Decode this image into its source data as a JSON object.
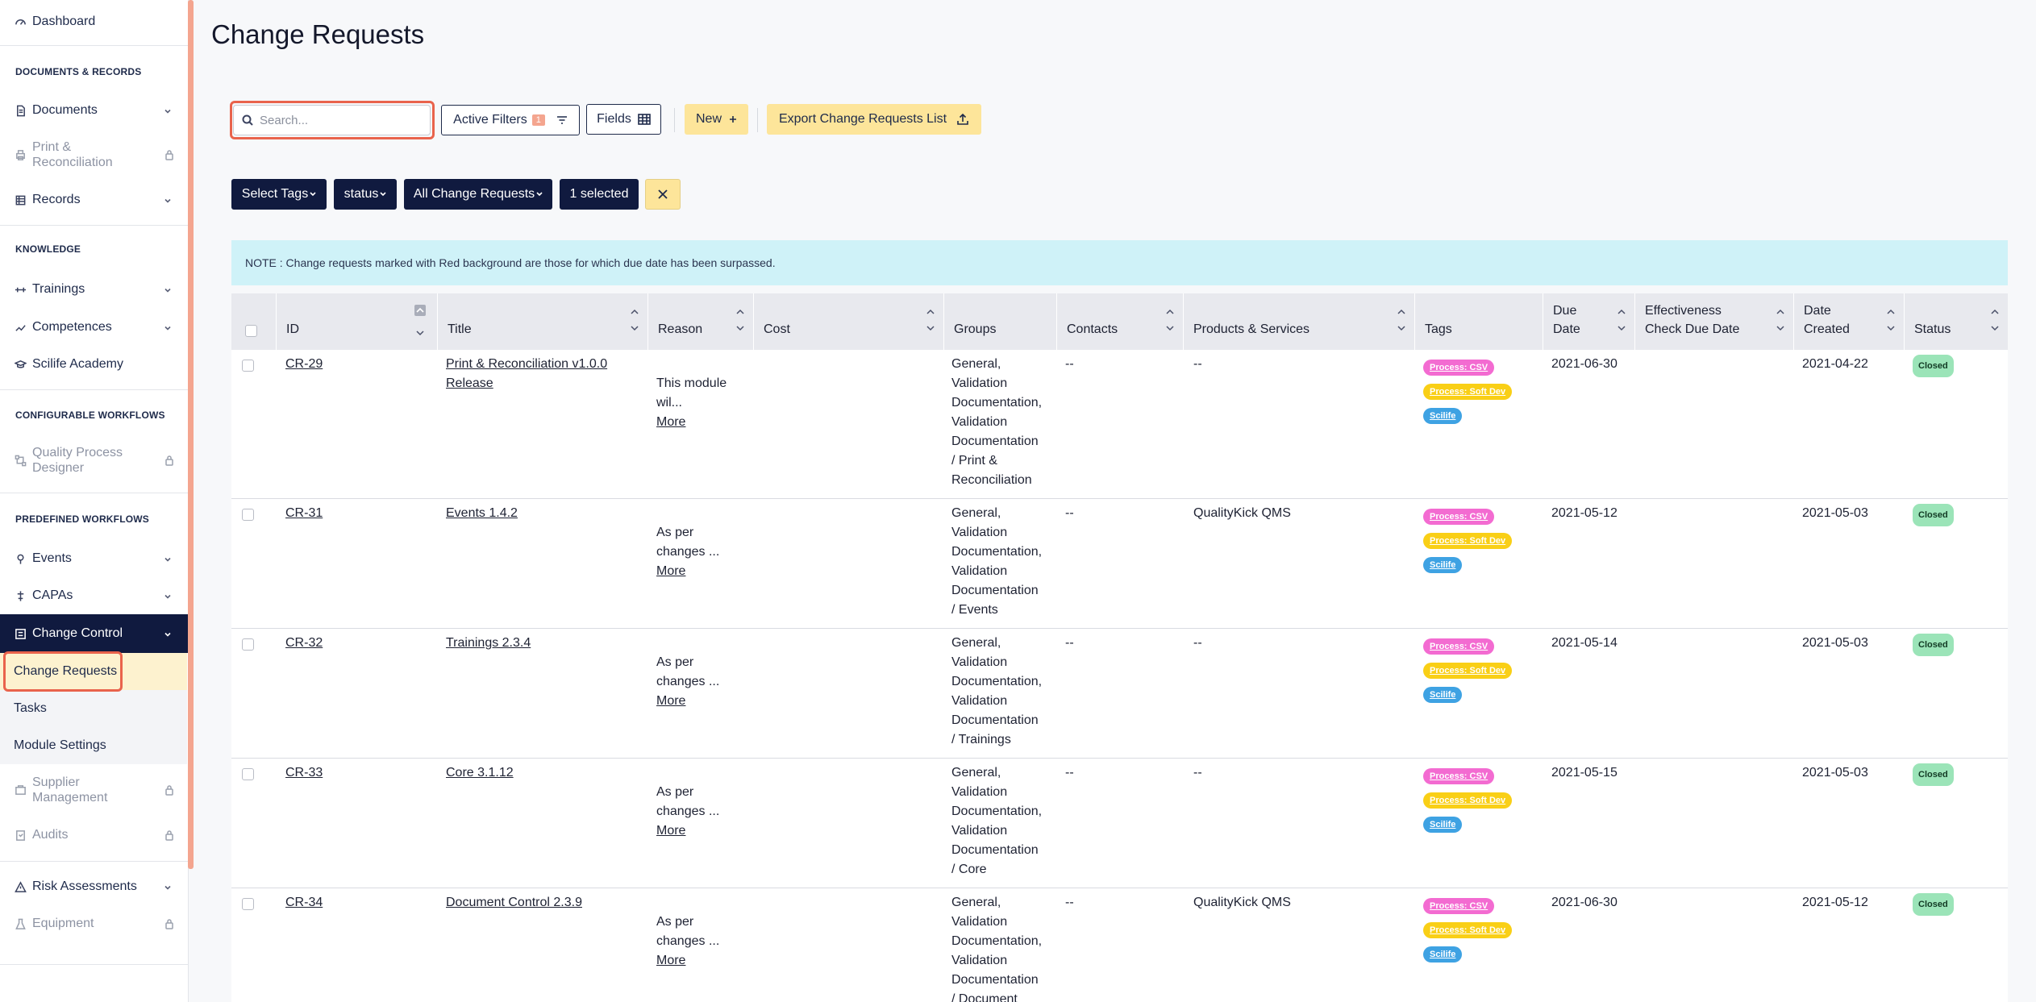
{
  "sidebar": {
    "dashboard": "Dashboard",
    "section_docs": "DOCUMENTS & RECORDS",
    "documents": "Documents",
    "print_reconciliation": [
      "Print &",
      "Reconciliation"
    ],
    "records": "Records",
    "section_knowledge": "KNOWLEDGE",
    "trainings": "Trainings",
    "competences": "Competences",
    "academy": "Scilife Academy",
    "section_configurable": "CONFIGURABLE WORKFLOWS",
    "qpd": [
      "Quality Process",
      "Designer"
    ],
    "section_predefined": "PREDEFINED WORKFLOWS",
    "events": "Events",
    "capas": "CAPAs",
    "change_control": "Change Control",
    "sub_change_requests": "Change Requests",
    "sub_tasks": "Tasks",
    "sub_module_settings": "Module Settings",
    "supplier": [
      "Supplier",
      "Management"
    ],
    "audits": "Audits",
    "risk": "Risk Assessments",
    "equipment": "Equipment"
  },
  "page": {
    "title": "Change Requests"
  },
  "toolbar": {
    "search_placeholder": "Search...",
    "active_filters": "Active Filters",
    "active_filters_count": "1",
    "fields": "Fields",
    "new": "New",
    "export": "Export Change Requests List"
  },
  "filters": {
    "select_tags": "Select Tags",
    "status": "status",
    "all_change_requests": "All Change Requests",
    "selected": "1 selected"
  },
  "note": "NOTE : Change requests marked with Red background are those for which due date has been surpassed.",
  "table": {
    "headers": {
      "id": "ID",
      "title": "Title",
      "reason": "Reason",
      "cost": "Cost",
      "groups": "Groups",
      "contacts": "Contacts",
      "products": "Products & Services",
      "tags": "Tags",
      "due_date": [
        "Due",
        "Date"
      ],
      "effectiveness": [
        "Effectiveness",
        "Check Due Date"
      ],
      "date_created": [
        "Date",
        "Created"
      ],
      "status": "Status"
    },
    "rows": [
      {
        "id": "CR-29",
        "title": [
          "Print & Reconciliation v1.0.0",
          "Release"
        ],
        "reason": [
          "This module",
          "wil..."
        ],
        "more": "More",
        "groups": [
          "General,",
          "Validation",
          "Documentation,",
          "Validation",
          "Documentation",
          "/ Print &",
          "Reconciliation"
        ],
        "contacts": "--",
        "products": "--",
        "tags": [
          "Process: CSV",
          "Process: Soft Dev",
          "Scilife"
        ],
        "due_date": "2021-06-30",
        "date_created": "2021-04-22",
        "status": "Closed"
      },
      {
        "id": "CR-31",
        "title": [
          "Events 1.4.2"
        ],
        "reason": [
          "As per",
          "changes ..."
        ],
        "more": "More",
        "groups": [
          "General,",
          "Validation",
          "Documentation,",
          "Validation",
          "Documentation",
          "/ Events"
        ],
        "contacts": "--",
        "products": "QualityKick QMS",
        "tags": [
          "Process: CSV",
          "Process: Soft Dev",
          "Scilife"
        ],
        "due_date": "2021-05-12",
        "date_created": "2021-05-03",
        "status": "Closed"
      },
      {
        "id": "CR-32",
        "title": [
          "Trainings 2.3.4"
        ],
        "reason": [
          "As per",
          "changes ..."
        ],
        "more": "More",
        "groups": [
          "General,",
          "Validation",
          "Documentation,",
          "Validation",
          "Documentation",
          "/ Trainings"
        ],
        "contacts": "--",
        "products": "--",
        "tags": [
          "Process: CSV",
          "Process: Soft Dev",
          "Scilife"
        ],
        "due_date": "2021-05-14",
        "date_created": "2021-05-03",
        "status": "Closed"
      },
      {
        "id": "CR-33",
        "title": [
          "Core 3.1.12"
        ],
        "reason": [
          "As per",
          "changes ..."
        ],
        "more": "More",
        "groups": [
          "General,",
          "Validation",
          "Documentation,",
          "Validation",
          "Documentation",
          "/ Core"
        ],
        "contacts": "--",
        "products": "--",
        "tags": [
          "Process: CSV",
          "Process: Soft Dev",
          "Scilife"
        ],
        "due_date": "2021-05-15",
        "date_created": "2021-05-03",
        "status": "Closed"
      },
      {
        "id": "CR-34",
        "title": [
          "Document Control 2.3.9"
        ],
        "reason": [
          "As per",
          "changes ..."
        ],
        "more": "More",
        "groups": [
          "General,",
          "Validation",
          "Documentation,",
          "Validation",
          "Documentation",
          "/ Document"
        ],
        "contacts": "--",
        "products": "QualityKick QMS",
        "tags": [
          "Process: CSV",
          "Process: Soft Dev",
          "Scilife"
        ],
        "due_date": "2021-06-30",
        "date_created": "2021-05-12",
        "status": "Closed"
      }
    ]
  }
}
